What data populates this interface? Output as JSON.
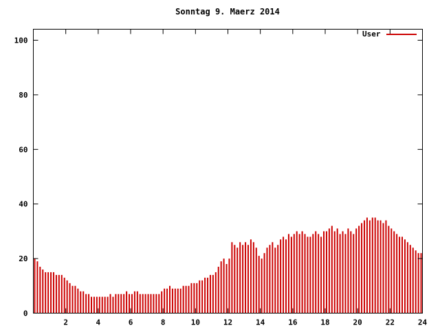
{
  "title": "Sonntag 9. Maerz 2014",
  "legend": {
    "series_label": "User"
  },
  "colors": {
    "bar": "#cc0000",
    "axis": "#000000",
    "background": "#ffffff"
  },
  "chart_data": {
    "type": "bar",
    "title": "Sonntag 9. Maerz 2014",
    "series_name": "User",
    "xlabel": "",
    "ylabel": "",
    "x_unit": "hour of day",
    "sample_interval_minutes": 10,
    "x_range": [
      0,
      24
    ],
    "y_range": [
      0,
      100
    ],
    "x_ticks": [
      2,
      4,
      6,
      8,
      10,
      12,
      14,
      16,
      18,
      20,
      22,
      24
    ],
    "y_ticks": [
      0,
      20,
      40,
      60,
      80,
      100
    ],
    "bar_color": "#cc0000",
    "legend_position": "top-right",
    "grid": false,
    "values": [
      20,
      19,
      17,
      16,
      15,
      15,
      15,
      15,
      14,
      14,
      14,
      13,
      12,
      11,
      10,
      10,
      9,
      8,
      8,
      7,
      7,
      6,
      6,
      6,
      6,
      6,
      6,
      6,
      7,
      6,
      7,
      7,
      7,
      7,
      8,
      7,
      7,
      8,
      8,
      7,
      7,
      7,
      7,
      7,
      7,
      7,
      7,
      8,
      9,
      9,
      10,
      9,
      9,
      9,
      9,
      10,
      10,
      10,
      11,
      11,
      11,
      12,
      12,
      13,
      13,
      14,
      14,
      15,
      17,
      19,
      20,
      18,
      20,
      26,
      25,
      24,
      26,
      25,
      26,
      25,
      27,
      26,
      24,
      21,
      20,
      22,
      24,
      25,
      26,
      24,
      25,
      27,
      28,
      27,
      29,
      28,
      29,
      30,
      29,
      30,
      29,
      28,
      28,
      29,
      30,
      29,
      28,
      30,
      30,
      31,
      32,
      30,
      31,
      29,
      30,
      29,
      31,
      30,
      29,
      31,
      32,
      33,
      34,
      35,
      34,
      35,
      35,
      34,
      34,
      33,
      34,
      32,
      31,
      30,
      29,
      28,
      28,
      27,
      26,
      25,
      24,
      23,
      22,
      22
    ]
  }
}
